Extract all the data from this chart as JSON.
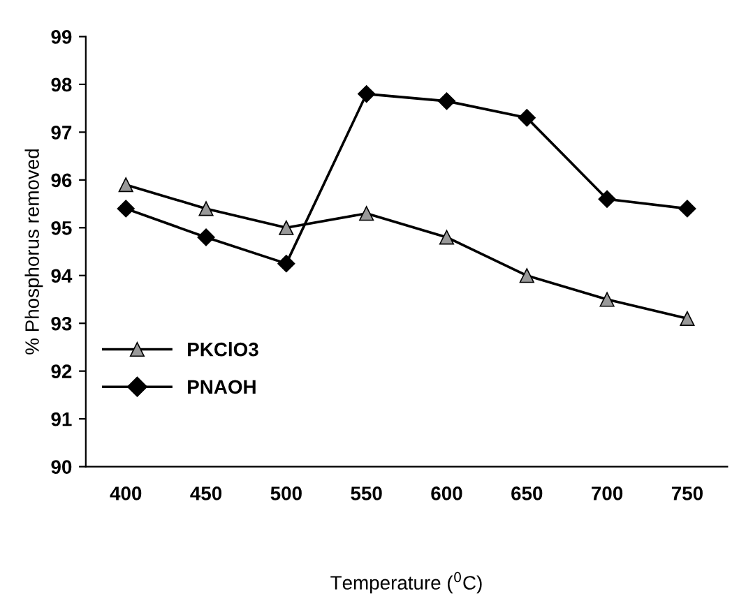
{
  "chart_data": {
    "type": "line",
    "xlabel": "Temperature ($^{0}$C)",
    "ylabel": "% Phosphorus removed",
    "categories": [
      "400",
      "450",
      "500",
      "550",
      "600",
      "650",
      "700",
      "750"
    ],
    "series": [
      {
        "name": "PKClO3",
        "color": "#999999",
        "marker": "triangle",
        "values": [
          95.9,
          95.4,
          95.0,
          95.3,
          94.8,
          94.0,
          93.5,
          93.1
        ]
      },
      {
        "name": "PNAOH",
        "color": "#000000",
        "marker": "diamond",
        "values": [
          95.4,
          94.8,
          94.25,
          97.8,
          97.65,
          97.3,
          95.6,
          95.4
        ]
      }
    ],
    "ylim": [
      90,
      99
    ],
    "yticks": [
      90,
      91,
      92,
      93,
      94,
      95,
      96,
      97,
      98,
      99
    ],
    "grid": false,
    "legend": "bottom left"
  }
}
